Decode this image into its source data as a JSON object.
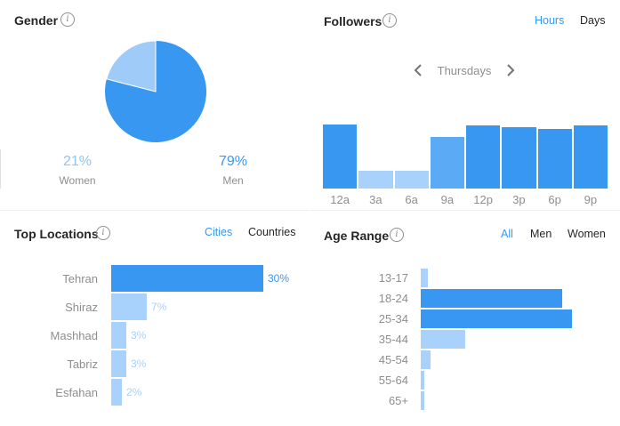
{
  "gender": {
    "title": "Gender",
    "info_icon": "i",
    "women": {
      "pct": "21%",
      "label": "Women",
      "value": 21
    },
    "men": {
      "pct": "79%",
      "label": "Men",
      "value": 79
    },
    "colors": {
      "women": "#9fcbf8",
      "men": "#3897f0"
    }
  },
  "followers": {
    "title": "Followers",
    "info_icon": "i",
    "toggle": {
      "hours": "Hours",
      "days": "Days"
    },
    "day_nav": {
      "prev_icon": "chevron-left-icon",
      "label": "Thursdays",
      "next_icon": "chevron-right-icon"
    }
  },
  "top_locations": {
    "title": "Top Locations",
    "info_icon": "i",
    "toggle": {
      "cities": "Cities",
      "countries": "Countries"
    }
  },
  "age_range": {
    "title": "Age Range",
    "info_icon": "i",
    "toggle": {
      "all": "All",
      "men": "Men",
      "women": "Women"
    }
  },
  "colors": {
    "accent": "#3897f0",
    "light": "#a8d1fb",
    "text_muted": "#8e8e8e"
  },
  "chart_data": [
    {
      "type": "pie",
      "categories": [
        "Women",
        "Men"
      ],
      "values": [
        21,
        79
      ]
    },
    {
      "type": "bar",
      "categories": [
        "12a",
        "3a",
        "6a",
        "9a",
        "12p",
        "3p",
        "6p",
        "9p"
      ],
      "values": [
        100,
        28,
        28,
        80,
        99,
        96,
        93,
        99
      ],
      "highlight": [
        true,
        false,
        false,
        false,
        true,
        true,
        true,
        true
      ]
    },
    {
      "type": "bar",
      "orientation": "horizontal",
      "categories": [
        "Tehran",
        "Shiraz",
        "Mashhad",
        "Tabriz",
        "Esfahan"
      ],
      "values": [
        30,
        7,
        3,
        3,
        2
      ],
      "labels": [
        "30%",
        "7%",
        "3%",
        "3%",
        "2%"
      ]
    },
    {
      "type": "bar",
      "orientation": "horizontal",
      "categories": [
        "13-17",
        "18-24",
        "25-34",
        "35-44",
        "45-54",
        "55-64",
        "65+"
      ],
      "values": [
        3,
        57,
        61,
        18,
        4,
        1,
        1
      ]
    }
  ]
}
